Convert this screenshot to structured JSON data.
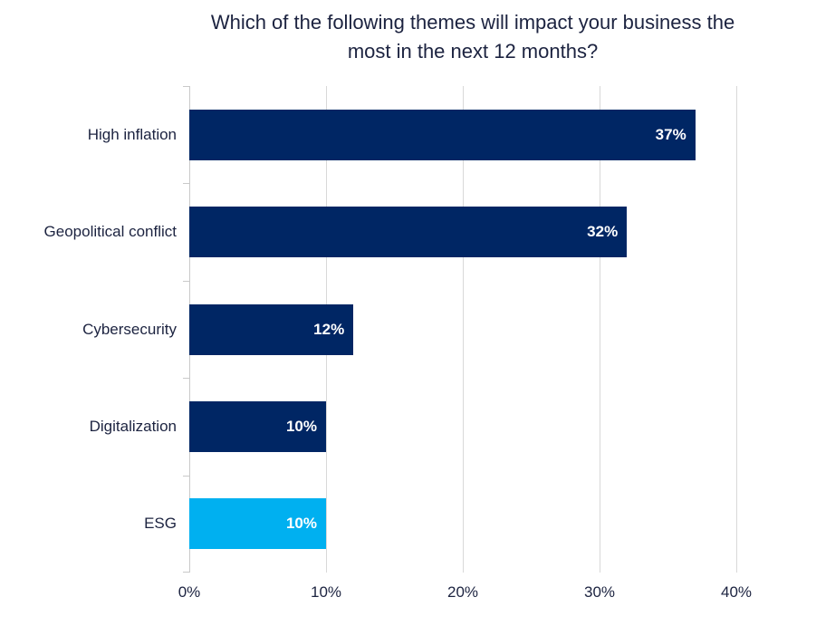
{
  "chart_data": {
    "type": "bar",
    "orientation": "horizontal",
    "title": "Which of the following themes will impact your business the most in the next 12 months?",
    "title_lines": [
      "Which of the following themes will impact your business the",
      "most in the next 12 months?"
    ],
    "categories": [
      "High inflation",
      "Geopolitical conflict",
      "Cybersecurity",
      "Digitalization",
      "ESG"
    ],
    "values": [
      37,
      32,
      12,
      10,
      10
    ],
    "value_labels": [
      "37%",
      "32%",
      "12%",
      "10%",
      "10%"
    ],
    "bar_colors": [
      "#002664",
      "#002664",
      "#002664",
      "#002664",
      "#00B0F0"
    ],
    "x_ticks": [
      "0%",
      "10%",
      "20%",
      "30%",
      "40%"
    ],
    "x_tick_values": [
      0,
      10,
      20,
      30,
      40
    ],
    "xlim": [
      0,
      40
    ],
    "xlabel": "",
    "ylabel": "",
    "grid": "vertical",
    "legend": "none",
    "colors": {
      "bar_navy": "#002664",
      "bar_cyan": "#00B0F0",
      "gridline": "#D8D8D8",
      "axis_line": "#C9C9C9",
      "text": "#1C2340",
      "value_text": "#FFFFFF",
      "background": "#FFFFFF"
    }
  }
}
